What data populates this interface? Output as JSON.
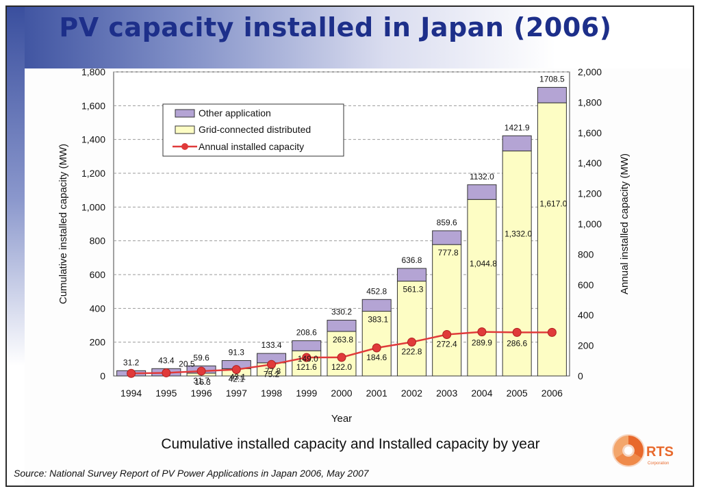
{
  "slide": {
    "title": "PV capacity installed in Japan (2006)",
    "caption": "Cumulative installed capacity and Installed capacity by year",
    "source": "Source: National Survey Report of PV Power Applications in Japan 2006,  May 2007",
    "logo_text": "RTS",
    "logo_subtext": "Corporation"
  },
  "colors": {
    "other_application": "#b4a4d4",
    "grid_connected": "#fdfdc4",
    "annual_line": "#e03a3a",
    "title": "#1d2f8a"
  },
  "chart_data": {
    "type": "bar",
    "stacked": true,
    "categories": [
      "1994",
      "1995",
      "1996",
      "1997",
      "1998",
      "1999",
      "2000",
      "2001",
      "2002",
      "2003",
      "2004",
      "2005",
      "2006"
    ],
    "series": [
      {
        "name": "Other application",
        "axis": "left",
        "values": [
          31.2,
          43.4,
          43.3,
          48.2,
          55.6,
          59.6,
          66.4,
          69.7,
          75.5,
          81.8,
          87.2,
          89.9,
          91.5
        ]
      },
      {
        "name": "Grid-connected distributed",
        "axis": "left",
        "values": [
          0,
          0,
          16.3,
          43.1,
          77.8,
          149.0,
          263.8,
          383.1,
          561.3,
          777.8,
          1044.8,
          1332.0,
          1617.0
        ]
      },
      {
        "name": "Annual installed capacity",
        "type": "line",
        "axis": "right",
        "values": [
          16.7,
          20.5,
          31.7,
          42.1,
          75.2,
          121.6,
          122.0,
          184.6,
          222.8,
          272.4,
          289.9,
          286.6,
          286.6
        ]
      }
    ],
    "total_labels": [
      "31.2",
      "43.4",
      "59.6",
      "91.3",
      "133.4",
      "208.6",
      "330.2",
      "452.8",
      "636.8",
      "859.6",
      "1132.0",
      "1421.9",
      "1708.5"
    ],
    "grid_labels": [
      "",
      "",
      "16.3",
      "43.1",
      "77.8",
      "149.0",
      "263.8",
      "383.1",
      "561.3",
      "777.8",
      "1,044.8",
      "1,332.0",
      "1,617.0"
    ],
    "annual_labels": [
      "",
      "20.5",
      "31.7",
      "42.1",
      "75.2",
      "121.6",
      "122.0",
      "184.6",
      "222.8",
      "272.4",
      "289.9",
      "286.6",
      ""
    ],
    "xlabel": "Year",
    "ylabel": "Cumulative installed capacity (MW)",
    "y2label": "Annual installed capacity (MW)",
    "ylim": [
      0,
      1800
    ],
    "y2lim": [
      0,
      2000
    ],
    "yticks": [
      "0",
      "200",
      "400",
      "600",
      "800",
      "1,000",
      "1,200",
      "1,400",
      "1,600",
      "1,800"
    ],
    "y2ticks": [
      "0",
      "200",
      "400",
      "600",
      "800",
      "1,000",
      "1,200",
      "1,400",
      "1,600",
      "1,800",
      "2,000"
    ],
    "grid": true,
    "legend_position": "top-left",
    "legend": [
      "Other application",
      "Grid-connected distributed",
      "Annual installed capacity"
    ]
  }
}
